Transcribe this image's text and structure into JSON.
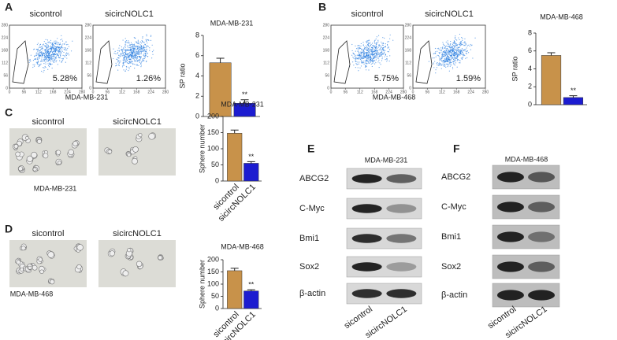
{
  "panel_labels": [
    "A",
    "B",
    "C",
    "D",
    "E",
    "F"
  ],
  "flow": [
    {
      "caption": "MDA-MB-231",
      "ticks": [
        0,
        56,
        112,
        168,
        224,
        280
      ],
      "plots": [
        {
          "title": "sicontrol",
          "percent": "5.28%"
        },
        {
          "title": "sicircNOLC1",
          "percent": "1.26%"
        }
      ]
    },
    {
      "caption": "MDA-MB-468",
      "ticks": [
        0,
        56,
        112,
        168,
        224,
        280
      ],
      "plots": [
        {
          "title": "sicontrol",
          "percent": "5.75%"
        },
        {
          "title": "sicircNOLC1",
          "percent": "1.59%"
        }
      ]
    }
  ],
  "sphere": [
    {
      "titles": [
        "sicontrol",
        "sicircNOLC1"
      ],
      "caption": "MDA-MB-231"
    },
    {
      "titles": [
        "sicontrol",
        "sicircNOLC1"
      ],
      "caption": "MDA-MB-468"
    }
  ],
  "blots": [
    {
      "title": "MDA-MB-231",
      "proteins": [
        "ABCG2",
        "C-Myc",
        "Bmi1",
        "Sox2",
        "β-actin"
      ],
      "lanes": [
        "sicontrol",
        "sicircNOLC1"
      ]
    },
    {
      "title": "MDA-MB-468",
      "proteins": [
        "ABCG2",
        "C-Myc",
        "Bmi1",
        "Sox2",
        "β-actin"
      ],
      "lanes": [
        "sicontrol",
        "sicircNOLC1"
      ]
    }
  ],
  "chart_data": [
    {
      "type": "bar",
      "title": "MDA-MB-231",
      "ylabel": "SP ratio",
      "categories": [
        null,
        null
      ],
      "values": [
        5.3,
        1.3
      ],
      "errors": [
        0.45,
        0.35
      ],
      "colors": [
        "#c8924a",
        "#1c1cd0"
      ],
      "annotation": "**",
      "ylim": [
        0,
        8
      ],
      "yticks": [
        0,
        2,
        4,
        6,
        8
      ]
    },
    {
      "type": "bar",
      "title": "MDA-MB-468",
      "ylabel": "SP ratio",
      "categories": [
        null,
        null
      ],
      "values": [
        5.5,
        0.8
      ],
      "errors": [
        0.3,
        0.2
      ],
      "colors": [
        "#c8924a",
        "#1c1cd0"
      ],
      "annotation": "**",
      "ylim": [
        0,
        8
      ],
      "yticks": [
        0,
        2,
        4,
        6,
        8
      ]
    },
    {
      "type": "bar",
      "title": "MDA-MB-231",
      "ylabel": "Sphere number",
      "categories": [
        "sicontrol",
        "sicircNOLC1"
      ],
      "values": [
        148,
        55
      ],
      "errors": [
        10,
        5
      ],
      "colors": [
        "#c8924a",
        "#1c1cd0"
      ],
      "annotation": "**",
      "ylim": [
        0,
        200
      ],
      "yticks": [
        0,
        50,
        100,
        150,
        200
      ]
    },
    {
      "type": "bar",
      "title": "MDA-MB-468",
      "ylabel": "Sphere number",
      "categories": [
        "sicontrol",
        "sicircNOLC1"
      ],
      "values": [
        155,
        72
      ],
      "errors": [
        10,
        5
      ],
      "colors": [
        "#c8924a",
        "#1c1cd0"
      ],
      "annotation": "**",
      "ylim": [
        0,
        200
      ],
      "yticks": [
        0,
        50,
        100,
        150,
        200
      ]
    }
  ]
}
